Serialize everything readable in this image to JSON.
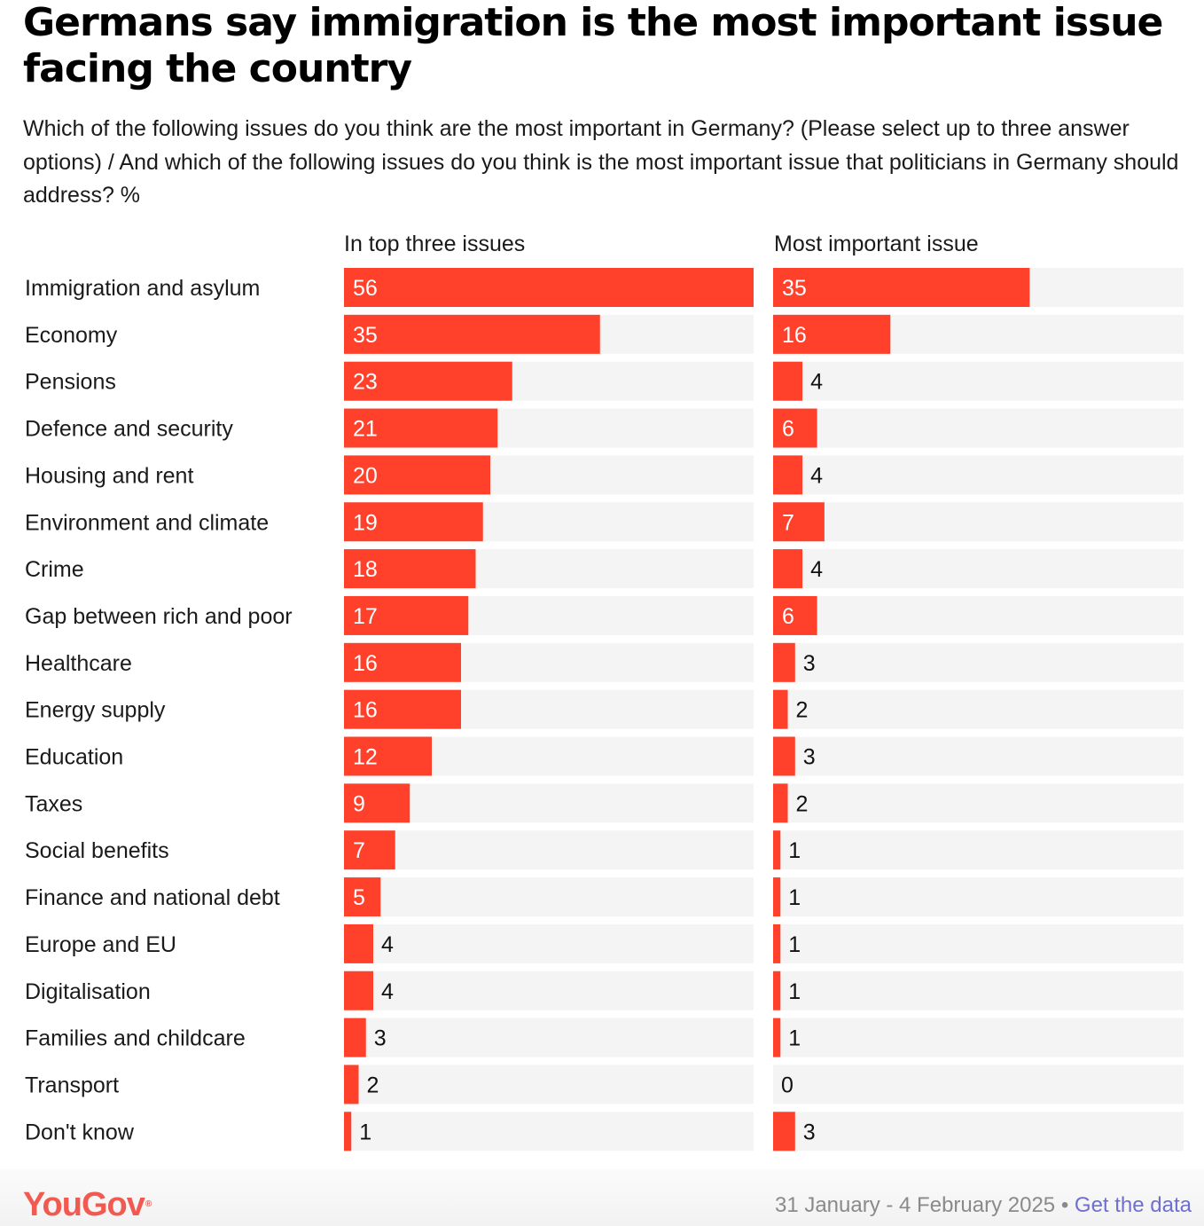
{
  "header": {
    "title": "Germans say immigration is the most important issue facing the country",
    "subtitle": "Which of the following issues do you think are the most important in Germany? (Please select up to three answer options) / And which of the following issues do you think is the most important issue that politicians in Germany should address? %"
  },
  "chart_data": {
    "type": "bar",
    "orientation": "horizontal",
    "categories": [
      "Immigration and asylum",
      "Economy",
      "Pensions",
      "Defence and security",
      "Housing and rent",
      "Environment and climate",
      "Crime",
      "Gap between rich and poor",
      "Healthcare",
      "Energy supply",
      "Education",
      "Taxes",
      "Social benefits",
      "Finance and national debt",
      "Europe and EU",
      "Digitalisation",
      "Families and childcare",
      "Transport",
      "Don't know"
    ],
    "series": [
      {
        "name": "In top three issues",
        "values": [
          56,
          35,
          23,
          21,
          20,
          19,
          18,
          17,
          16,
          16,
          12,
          9,
          7,
          5,
          4,
          4,
          3,
          2,
          1
        ],
        "xlim": [
          0,
          56
        ]
      },
      {
        "name": "Most important issue",
        "values": [
          35,
          16,
          4,
          6,
          4,
          7,
          4,
          6,
          3,
          2,
          3,
          2,
          1,
          1,
          1,
          1,
          1,
          0,
          3
        ],
        "xlim": [
          0,
          56
        ]
      }
    ],
    "colors": {
      "bar": "#ff412c",
      "track": "#f4f4f4",
      "label_inside": "#ffffff",
      "label_outside": "#111111"
    }
  },
  "footer": {
    "logo": "YouGov",
    "logo_mark": "®",
    "date": "31 January - 4 February 2025",
    "separator": "•",
    "link": "Get the data"
  }
}
